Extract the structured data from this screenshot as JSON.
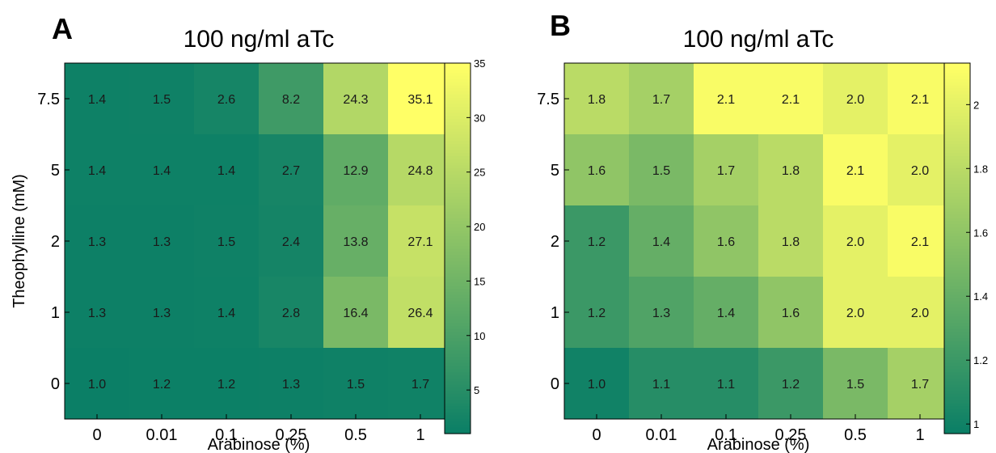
{
  "chart_data": [
    {
      "type": "heatmap",
      "panel_label": "A",
      "title": "100 ng/ml aTc",
      "xlabel": "Arabinose (%)",
      "ylabel": "Theophylline (mM)",
      "x_categories": [
        "0",
        "0.01",
        "0.1",
        "0.25",
        "0.5",
        "1"
      ],
      "y_categories": [
        "7.5",
        "5",
        "2",
        "1",
        "0"
      ],
      "values": [
        [
          1.4,
          1.5,
          2.6,
          8.2,
          24.3,
          35.1
        ],
        [
          1.4,
          1.4,
          1.4,
          2.7,
          12.9,
          24.8
        ],
        [
          1.3,
          1.3,
          1.5,
          2.4,
          13.8,
          27.1
        ],
        [
          1.3,
          1.3,
          1.4,
          2.8,
          16.4,
          26.4
        ],
        [
          1.0,
          1.2,
          1.2,
          1.3,
          1.5,
          1.7
        ]
      ],
      "value_labels": [
        [
          "1.4",
          "1.5",
          "2.6",
          "8.2",
          "24.3",
          "35.1"
        ],
        [
          "1.4",
          "1.4",
          "1.4",
          "2.7",
          "12.9",
          "24.8"
        ],
        [
          "1.3",
          "1.3",
          "1.5",
          "2.4",
          "13.8",
          "27.1"
        ],
        [
          "1.3",
          "1.3",
          "1.4",
          "2.8",
          "16.4",
          "26.4"
        ],
        [
          "1.0",
          "1.2",
          "1.2",
          "1.3",
          "1.5",
          "1.7"
        ]
      ],
      "colorbar": {
        "range": [
          1,
          35
        ],
        "ticks": [
          "5",
          "10",
          "15",
          "20",
          "25",
          "30",
          "35"
        ]
      },
      "colormap": "summer",
      "grid": false
    },
    {
      "type": "heatmap",
      "panel_label": "B",
      "title": "100 ng/ml aTc",
      "xlabel": "Arabinose (%)",
      "ylabel": "",
      "x_categories": [
        "0",
        "0.01",
        "0.1",
        "0.25",
        "0.5",
        "1"
      ],
      "y_categories": [
        "7.5",
        "5",
        "2",
        "1",
        "0"
      ],
      "values": [
        [
          1.8,
          1.7,
          2.1,
          2.1,
          2.0,
          2.1
        ],
        [
          1.6,
          1.5,
          1.7,
          1.8,
          2.1,
          2.0
        ],
        [
          1.2,
          1.4,
          1.6,
          1.8,
          2.0,
          2.1
        ],
        [
          1.2,
          1.3,
          1.4,
          1.6,
          2.0,
          2.0
        ],
        [
          1.0,
          1.1,
          1.1,
          1.2,
          1.5,
          1.7
        ]
      ],
      "value_labels": [
        [
          "1.8",
          "1.7",
          "2.1",
          "2.1",
          "2.0",
          "2.1"
        ],
        [
          "1.6",
          "1.5",
          "1.7",
          "1.8",
          "2.1",
          "2.0"
        ],
        [
          "1.2",
          "1.4",
          "1.6",
          "1.8",
          "2.0",
          "2.1"
        ],
        [
          "1.2",
          "1.3",
          "1.4",
          "1.6",
          "2.0",
          "2.0"
        ],
        [
          "1.0",
          "1.1",
          "1.1",
          "1.2",
          "1.5",
          "1.7"
        ]
      ],
      "colorbar": {
        "range": [
          0.97,
          2.13
        ],
        "ticks": [
          "1",
          "1.2",
          "1.4",
          "1.6",
          "1.8",
          "2"
        ]
      },
      "colormap": "summer",
      "grid": false
    }
  ],
  "colors": {
    "low": "#0b7f66",
    "high": "#ffff66",
    "text": "#1a1a1a",
    "axis": "#000000"
  }
}
